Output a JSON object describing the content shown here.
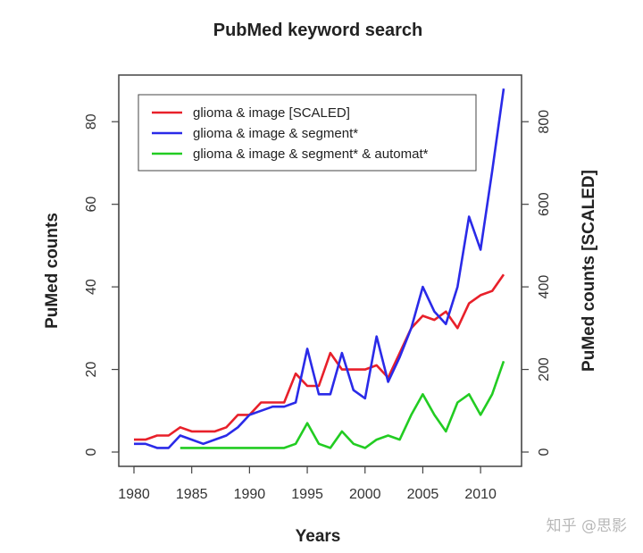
{
  "chart_data": {
    "type": "line",
    "title": "PubMed keyword search",
    "xlabel": "Years",
    "ylabel": "PuMed counts",
    "ylabel_right": "PuMed counts [SCALED]",
    "xlim": [
      1980,
      2012
    ],
    "ylim": [
      0,
      90
    ],
    "ylim_right": [
      0,
      900
    ],
    "x_ticks": [
      1980,
      1985,
      1990,
      1995,
      2000,
      2005,
      2010
    ],
    "y_ticks": [
      0,
      20,
      40,
      60,
      80
    ],
    "y_ticks_right": [
      0,
      200,
      400,
      600,
      800
    ],
    "legend_position": "top-left",
    "grid": false,
    "series": [
      {
        "name": "glioma & image  [SCALED]",
        "color": "#e8202a",
        "axis": "right",
        "x": [
          1980,
          1981,
          1982,
          1983,
          1984,
          1985,
          1986,
          1987,
          1988,
          1989,
          1990,
          1991,
          1992,
          1993,
          1994,
          1995,
          1996,
          1997,
          1998,
          1999,
          2000,
          2001,
          2002,
          2003,
          2004,
          2005,
          2006,
          2007,
          2008,
          2009,
          2010,
          2011,
          2012
        ],
        "y": [
          30,
          30,
          40,
          40,
          60,
          50,
          50,
          50,
          60,
          90,
          90,
          120,
          120,
          120,
          190,
          160,
          160,
          240,
          200,
          200,
          200,
          210,
          180,
          240,
          300,
          330,
          320,
          340,
          300,
          360,
          380,
          390,
          430
        ]
      },
      {
        "name": "glioma & image & segment*",
        "color": "#2a2ae8",
        "axis": "left",
        "x": [
          1980,
          1981,
          1982,
          1983,
          1984,
          1985,
          1986,
          1987,
          1988,
          1989,
          1990,
          1991,
          1992,
          1993,
          1994,
          1995,
          1996,
          1997,
          1998,
          1999,
          2000,
          2001,
          2002,
          2003,
          2004,
          2005,
          2006,
          2007,
          2008,
          2009,
          2010,
          2011,
          2012
        ],
        "y": [
          2,
          2,
          1,
          1,
          4,
          3,
          2,
          3,
          4,
          6,
          9,
          10,
          11,
          11,
          12,
          25,
          14,
          14,
          24,
          15,
          13,
          28,
          17,
          23,
          30,
          40,
          34,
          31,
          40,
          57,
          49,
          68,
          88
        ]
      },
      {
        "name": "glioma & image & segment* & automat*",
        "color": "#22cc22",
        "axis": "left",
        "x": [
          1984,
          1985,
          1986,
          1987,
          1988,
          1989,
          1990,
          1991,
          1992,
          1993,
          1994,
          1995,
          1996,
          1997,
          1998,
          1999,
          2000,
          2001,
          2002,
          2003,
          2004,
          2005,
          2006,
          2007,
          2008,
          2009,
          2010,
          2011,
          2012
        ],
        "y": [
          1,
          1,
          1,
          1,
          1,
          1,
          1,
          1,
          1,
          1,
          2,
          7,
          2,
          1,
          5,
          2,
          1,
          3,
          4,
          3,
          9,
          14,
          9,
          5,
          12,
          14,
          9,
          14,
          22
        ]
      }
    ]
  },
  "watermark": "知乎 @思影"
}
